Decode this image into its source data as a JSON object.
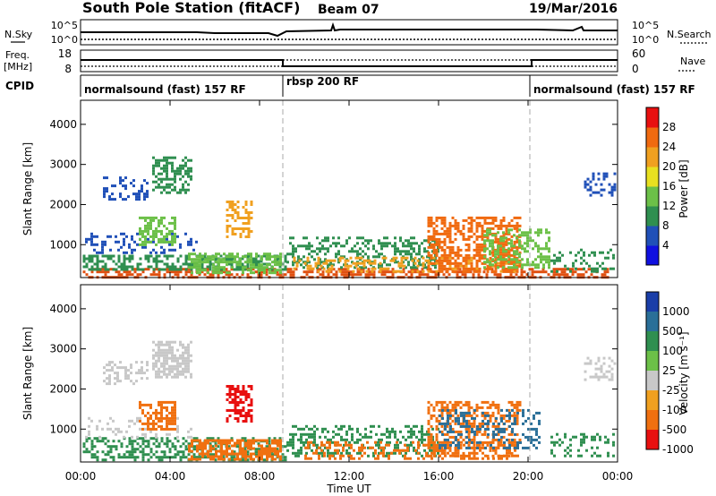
{
  "header": {
    "station": "South Pole Station (fitACF)",
    "beam": "Beam 07",
    "date": "19/Mar/2016"
  },
  "status_panels": {
    "nsky_label": "N.Sky",
    "nsearch_label": "N.Search",
    "nsky_ticks": [
      "10^5",
      "10^0"
    ],
    "nsearch_ticks": [
      "10^5",
      "10^0"
    ],
    "freq_label_line1": "Freq.",
    "freq_label_line2": "[MHz]",
    "freq_ticks": [
      "18",
      "8"
    ],
    "nave_label": "Nave",
    "nave_ticks": [
      "60",
      "0"
    ],
    "cpid_label": "CPID",
    "cpid_segments": [
      {
        "label": "normalsound (fast) 157 RF",
        "start_hour": 0,
        "end_hour": 9
      },
      {
        "label": "rbsp 200 RF",
        "start_hour": 9,
        "end_hour": 20
      },
      {
        "label": "normalsound (fast) 157 RF",
        "start_hour": 20,
        "end_hour": 24
      }
    ]
  },
  "chart_data": [
    {
      "type": "heatmap",
      "name": "power",
      "ylabel": "Slant Range [km]",
      "xlabel": "Time UT",
      "xlim": [
        0,
        24
      ],
      "ylim": [
        180,
        4600
      ],
      "x_ticks": [
        "00:00",
        "04:00",
        "08:00",
        "12:00",
        "16:00",
        "20:00",
        "00:00"
      ],
      "y_ticks": [
        1000,
        2000,
        3000,
        4000
      ],
      "colorbar": {
        "label": "Power [dB]",
        "ticks": [
          "4",
          "8",
          "12",
          "16",
          "20",
          "24",
          "28"
        ],
        "colors": [
          "#1010e0",
          "#2050b8",
          "#2f8f50",
          "#6cc048",
          "#e8e020",
          "#f0a020",
          "#f06a10",
          "#e81010"
        ]
      },
      "echo_regions": [
        {
          "t0": 0.1,
          "t1": 23.6,
          "r0": 200,
          "r1": 420,
          "color": "#e05010",
          "density": 0.55
        },
        {
          "t0": 0.1,
          "t1": 9.2,
          "r0": 350,
          "r1": 750,
          "color": "#2f8f50",
          "density": 0.55
        },
        {
          "t0": 4.8,
          "t1": 9.0,
          "r0": 300,
          "r1": 800,
          "color": "#6cc048",
          "density": 0.6
        },
        {
          "t0": 0.2,
          "t1": 5.2,
          "r0": 800,
          "r1": 1300,
          "color": "#2050b8",
          "density": 0.25
        },
        {
          "t0": 2.6,
          "t1": 4.2,
          "r0": 1000,
          "r1": 1700,
          "color": "#6cc048",
          "density": 0.55
        },
        {
          "t0": 1.0,
          "t1": 3.0,
          "r0": 2100,
          "r1": 2700,
          "color": "#2050b8",
          "density": 0.35
        },
        {
          "t0": 3.2,
          "t1": 5.0,
          "r0": 2300,
          "r1": 3200,
          "color": "#2f8f50",
          "density": 0.55
        },
        {
          "t0": 6.5,
          "t1": 7.6,
          "r0": 1200,
          "r1": 2100,
          "color": "#f0a020",
          "density": 0.5
        },
        {
          "t0": 9.2,
          "t1": 16.0,
          "r0": 400,
          "r1": 1200,
          "color": "#2f8f50",
          "density": 0.4
        },
        {
          "t0": 9.5,
          "t1": 19.5,
          "r0": 300,
          "r1": 700,
          "color": "#f0a020",
          "density": 0.35
        },
        {
          "t0": 15.5,
          "t1": 19.6,
          "r0": 300,
          "r1": 1700,
          "color": "#f06a10",
          "density": 0.55
        },
        {
          "t0": 18.0,
          "t1": 21.0,
          "r0": 400,
          "r1": 1400,
          "color": "#6cc048",
          "density": 0.45
        },
        {
          "t0": 21.0,
          "t1": 23.8,
          "r0": 300,
          "r1": 900,
          "color": "#2f8f50",
          "density": 0.3
        },
        {
          "t0": 22.5,
          "t1": 23.9,
          "r0": 2200,
          "r1": 2800,
          "color": "#2050b8",
          "density": 0.3
        }
      ]
    },
    {
      "type": "heatmap",
      "name": "velocity",
      "ylabel": "Slant Range [km]",
      "xlabel": "Time UT",
      "xlim": [
        0,
        24
      ],
      "ylim": [
        180,
        4600
      ],
      "x_ticks": [
        "00:00",
        "04:00",
        "08:00",
        "12:00",
        "16:00",
        "20:00",
        "00:00"
      ],
      "y_ticks": [
        1000,
        2000,
        3000,
        4000
      ],
      "colorbar": {
        "label": "Velocity [m s⁻¹]",
        "ticks": [
          "1000",
          "500",
          "100",
          "25",
          "-25",
          "-100",
          "-500",
          "-1000"
        ],
        "colors": [
          "#1a3ea8",
          "#2a6f98",
          "#2f8f50",
          "#6cc048",
          "#c8c8c8",
          "#f0a020",
          "#f07010",
          "#e81010"
        ]
      },
      "echo_regions": [
        {
          "t0": 0.1,
          "t1": 9.2,
          "r0": 200,
          "r1": 800,
          "color": "#2f8f50",
          "density": 0.45
        },
        {
          "t0": 4.8,
          "t1": 9.0,
          "r0": 250,
          "r1": 750,
          "color": "#f07010",
          "density": 0.7
        },
        {
          "t0": 0.2,
          "t1": 5.0,
          "r0": 800,
          "r1": 1300,
          "color": "#c8c8c8",
          "density": 0.2
        },
        {
          "t0": 2.6,
          "t1": 4.2,
          "r0": 1000,
          "r1": 1700,
          "color": "#f07010",
          "density": 0.55
        },
        {
          "t0": 1.0,
          "t1": 3.0,
          "r0": 2100,
          "r1": 2700,
          "color": "#c8c8c8",
          "density": 0.35
        },
        {
          "t0": 3.2,
          "t1": 5.0,
          "r0": 2300,
          "r1": 3200,
          "color": "#c8c8c8",
          "density": 0.6
        },
        {
          "t0": 6.5,
          "t1": 7.6,
          "r0": 1200,
          "r1": 2100,
          "color": "#e81010",
          "density": 0.55
        },
        {
          "t0": 9.2,
          "t1": 16.0,
          "r0": 300,
          "r1": 1100,
          "color": "#2f8f50",
          "density": 0.4
        },
        {
          "t0": 10.0,
          "t1": 19.5,
          "r0": 250,
          "r1": 700,
          "color": "#f07010",
          "density": 0.35
        },
        {
          "t0": 15.5,
          "t1": 19.6,
          "r0": 300,
          "r1": 1700,
          "color": "#f07010",
          "density": 0.45
        },
        {
          "t0": 16.0,
          "t1": 20.5,
          "r0": 500,
          "r1": 1500,
          "color": "#2a6f98",
          "density": 0.3
        },
        {
          "t0": 21.0,
          "t1": 23.8,
          "r0": 300,
          "r1": 900,
          "color": "#2f8f50",
          "density": 0.3
        },
        {
          "t0": 22.5,
          "t1": 23.9,
          "r0": 2200,
          "r1": 2800,
          "color": "#c8c8c8",
          "density": 0.35
        }
      ]
    }
  ]
}
